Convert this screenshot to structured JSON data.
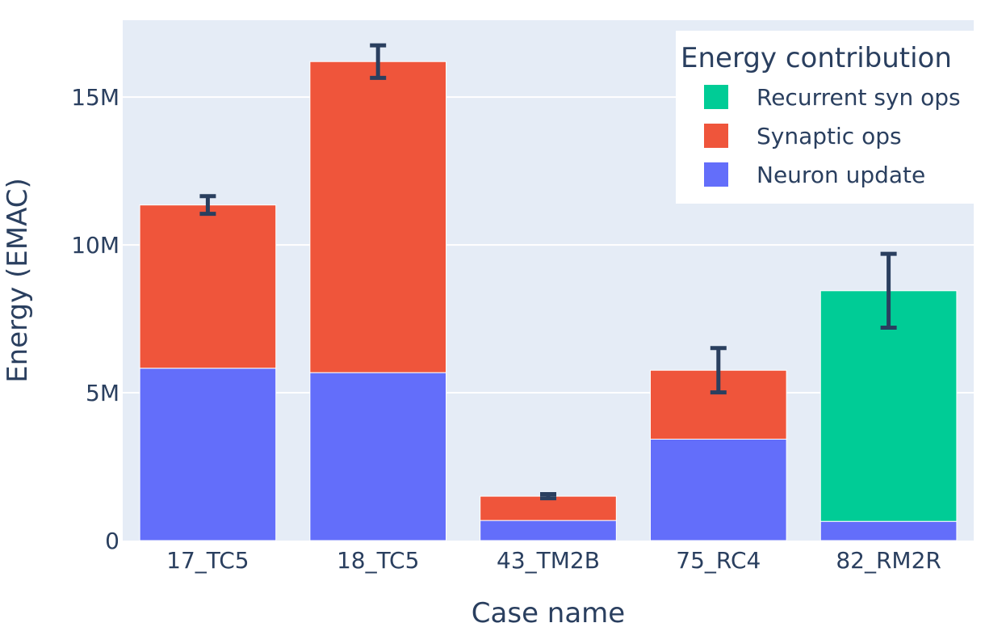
{
  "chart_data": {
    "type": "bar",
    "barmode": "stack",
    "categories": [
      "17_TC5",
      "18_TC5",
      "43_TM2B",
      "75_RC4",
      "82_RM2R"
    ],
    "series": [
      {
        "name": "Neuron update",
        "color": "#636efa",
        "values": [
          5.83,
          5.68,
          0.68,
          3.43,
          0.65
        ]
      },
      {
        "name": "Synaptic ops",
        "color": "#ef553b",
        "values": [
          5.52,
          10.52,
          0.82,
          2.33,
          0
        ]
      },
      {
        "name": "Recurrent syn ops",
        "color": "#00cc96",
        "values": [
          0,
          0,
          0,
          0,
          7.8
        ]
      }
    ],
    "error_bars": {
      "color": "#2a3f5f",
      "center": [
        11.35,
        16.2,
        1.5,
        5.76,
        8.45
      ],
      "minus": [
        0.3,
        0.55,
        0.07,
        0.75,
        1.25
      ],
      "plus": [
        0.3,
        0.55,
        0.07,
        0.75,
        1.25
      ]
    },
    "value_scale": "millions",
    "xlabel": "Case name",
    "ylabel": "Energy (EMAC)",
    "ylim": [
      0,
      17.6
    ],
    "yticks": [
      0,
      5,
      10,
      15
    ],
    "ytick_labels": [
      "0",
      "5M",
      "10M",
      "15M"
    ],
    "grid": true,
    "legend": {
      "title": "Energy contribution",
      "position": "top-right",
      "order": [
        "Recurrent syn ops",
        "Synaptic ops",
        "Neuron update"
      ]
    },
    "plot_background": "#e5ecf6"
  }
}
